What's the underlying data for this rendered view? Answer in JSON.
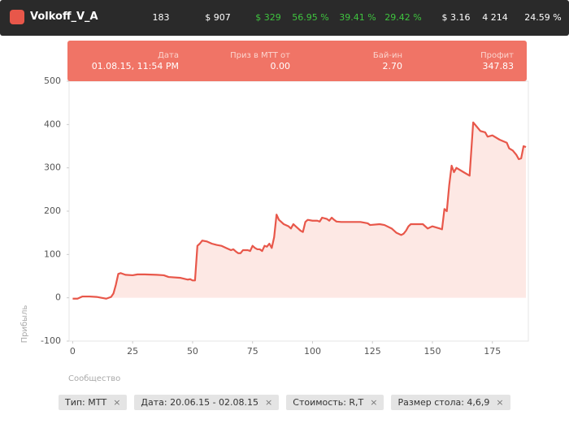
{
  "header": {
    "player": "Volkoff_V_A",
    "stats": [
      {
        "text": "183",
        "color": "#ffffff"
      },
      {
        "text": "$ 907",
        "color": "#ffffff"
      },
      {
        "text": "$ 329",
        "color": "#3fc43f"
      },
      {
        "text": "56.95 %",
        "color": "#3fc43f"
      },
      {
        "text": "39.41 %",
        "color": "#3fc43f"
      },
      {
        "text": "29.42 %",
        "color": "#3fc43f"
      },
      {
        "text": "$ 3.16",
        "color": "#ffffff"
      },
      {
        "text": "4 214",
        "color": "#ffffff"
      },
      {
        "text": "24.59 %",
        "color": "#ffffff"
      }
    ]
  },
  "tooltip": {
    "fields": [
      {
        "label": "Дата",
        "value": "01.08.15, 11:54 PM"
      },
      {
        "label": "Приз в МТТ от",
        "value": "0.00"
      },
      {
        "label": "Бай-ин",
        "value": "2.70"
      },
      {
        "label": "Профит",
        "value": "347.83"
      }
    ]
  },
  "chart_data": {
    "type": "area",
    "y_label": "Прибыль",
    "x_label": "Сообщество",
    "color": "#e8574a",
    "fill_color": "#fde8e4",
    "grid": false,
    "x": [
      0,
      2,
      4,
      7,
      10,
      12,
      14,
      16,
      17,
      18,
      19,
      20,
      22,
      25,
      27,
      30,
      35,
      38,
      40,
      45,
      48,
      49,
      50,
      51,
      52,
      53,
      54,
      56,
      58,
      60,
      62,
      64,
      66,
      67,
      68,
      69,
      70,
      71,
      73,
      74,
      75,
      76,
      77,
      78,
      79,
      80,
      81,
      82,
      83,
      84,
      85,
      86,
      87,
      88,
      90,
      91,
      92,
      93,
      94,
      95,
      96,
      97,
      98,
      100,
      102,
      103,
      104,
      106,
      107,
      108,
      109,
      110,
      112,
      115,
      120,
      123,
      124,
      128,
      130,
      133,
      135,
      137,
      138,
      139,
      140,
      141,
      143,
      146,
      148,
      150,
      153,
      154,
      155,
      156,
      157,
      158,
      159,
      160,
      163,
      165.5,
      167,
      168.5,
      170,
      172,
      173,
      175,
      178,
      181,
      182,
      183.5,
      185,
      186,
      187,
      188,
      189
    ],
    "values": [
      -2,
      -2,
      3,
      3,
      2,
      0,
      -2,
      2,
      10,
      30,
      55,
      57,
      53,
      52,
      54,
      54,
      53,
      52,
      48,
      46,
      42,
      43,
      40,
      40,
      120,
      125,
      132,
      130,
      125,
      122,
      120,
      115,
      110,
      112,
      107,
      103,
      103,
      110,
      110,
      108,
      120,
      115,
      112,
      112,
      108,
      120,
      118,
      125,
      115,
      140,
      192,
      180,
      175,
      170,
      165,
      160,
      170,
      165,
      160,
      155,
      152,
      175,
      180,
      178,
      178,
      176,
      185,
      182,
      178,
      185,
      180,
      176,
      175,
      175,
      175,
      172,
      168,
      170,
      168,
      160,
      150,
      145,
      148,
      155,
      165,
      170,
      170,
      170,
      160,
      165,
      160,
      158,
      205,
      200,
      260,
      305,
      290,
      300,
      290,
      282,
      405,
      395,
      385,
      382,
      372,
      375,
      365,
      358,
      345,
      340,
      330,
      320,
      322,
      350,
      348
    ],
    "xlim": [
      -1.5,
      190
    ],
    "ylim": [
      -100,
      500
    ],
    "xticks": [
      0,
      25,
      50,
      75,
      100,
      125,
      150,
      175
    ],
    "yticks": [
      -100,
      0,
      100,
      200,
      300,
      400,
      500
    ]
  },
  "filters": [
    {
      "text": "Тип: МТТ",
      "close": "×"
    },
    {
      "text": "Дата: 20.06.15 - 02.08.15",
      "close": "×"
    },
    {
      "text": "Стоимость: R,T",
      "close": "×"
    },
    {
      "text": "Размер стола: 4,6,9",
      "close": "×"
    }
  ]
}
